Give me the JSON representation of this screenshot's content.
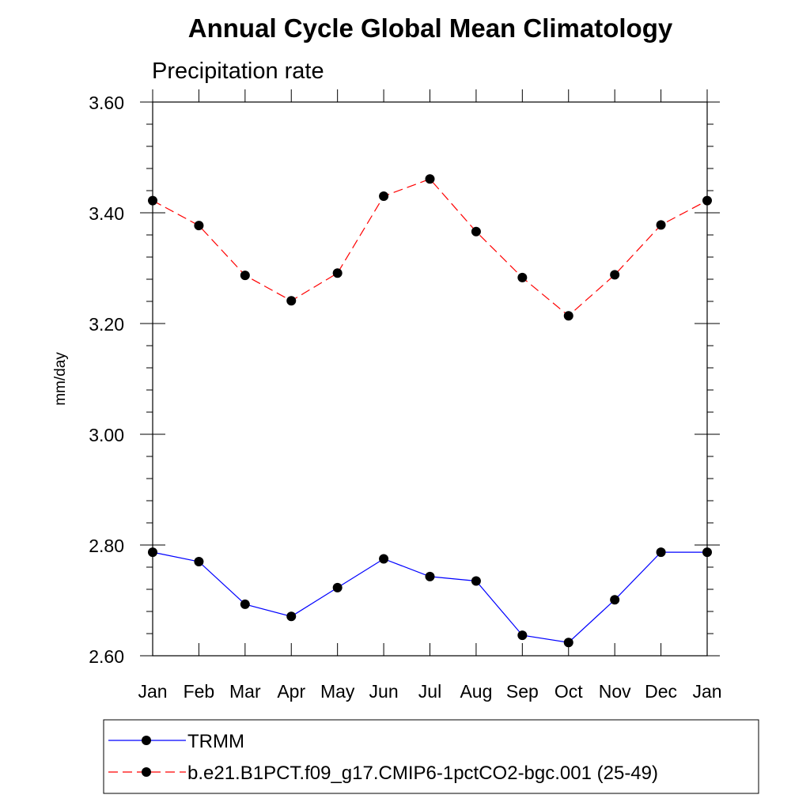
{
  "chart_data": {
    "type": "line",
    "title": "Annual Cycle Global Mean Climatology",
    "subtitle": "Precipitation rate",
    "xlabel": "",
    "ylabel": "mm/day",
    "categories": [
      "Jan",
      "Feb",
      "Mar",
      "Apr",
      "May",
      "Jun",
      "Jul",
      "Aug",
      "Sep",
      "Oct",
      "Nov",
      "Dec",
      "Jan"
    ],
    "ylim": [
      2.6,
      3.6
    ],
    "yticks": [
      "2.60",
      "2.80",
      "3.00",
      "3.20",
      "3.40",
      "3.60"
    ],
    "grid": false,
    "legend_position": "bottom",
    "series": [
      {
        "name": "TRMM",
        "color": "#0000ff",
        "style": "solid",
        "values": [
          2.787,
          2.77,
          2.693,
          2.671,
          2.723,
          2.775,
          2.743,
          2.735,
          2.637,
          2.624,
          2.701,
          2.787,
          2.787
        ]
      },
      {
        "name": "b.e21.B1PCT.f09_g17.CMIP6-1pctCO2-bgc.001 (25-49)",
        "color": "#ff0000",
        "style": "dashed",
        "values": [
          3.422,
          3.377,
          3.287,
          3.241,
          3.291,
          3.43,
          3.461,
          3.366,
          3.283,
          3.214,
          3.288,
          3.378,
          3.422
        ]
      }
    ]
  }
}
